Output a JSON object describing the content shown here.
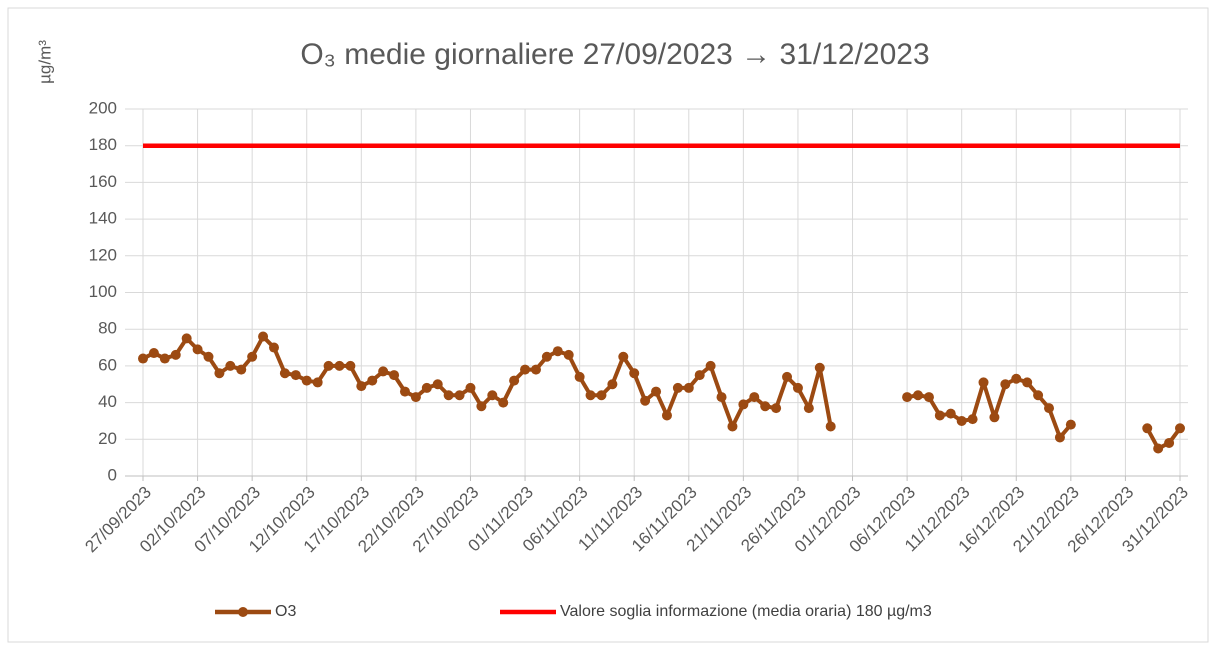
{
  "chart_data": {
    "type": "line",
    "title": "O₃ medie giornaliere 27/09/2023 → 31/12/2023",
    "y_label": "µg/m³",
    "categories": [
      "27/09/2023",
      null,
      null,
      null,
      null,
      "02/10/2023",
      null,
      null,
      null,
      null,
      "07/10/2023",
      null,
      null,
      null,
      null,
      "12/10/2023",
      null,
      null,
      null,
      null,
      "17/10/2023",
      null,
      null,
      null,
      null,
      "22/10/2023",
      null,
      null,
      null,
      null,
      "27/10/2023",
      null,
      null,
      null,
      null,
      "01/11/2023",
      null,
      null,
      null,
      null,
      "06/11/2023",
      null,
      null,
      null,
      null,
      "11/11/2023",
      null,
      null,
      null,
      null,
      "16/11/2023",
      null,
      null,
      null,
      null,
      "21/11/2023",
      null,
      null,
      null,
      null,
      "26/11/2023",
      null,
      null,
      null,
      null,
      "01/12/2023",
      null,
      null,
      null,
      null,
      "06/12/2023",
      null,
      null,
      null,
      null,
      "11/12/2023",
      null,
      null,
      null,
      null,
      "16/12/2023",
      null,
      null,
      null,
      null,
      "21/12/2023",
      null,
      null,
      null,
      null,
      "26/12/2023",
      null,
      null,
      null,
      null,
      "31/12/2023"
    ],
    "series": [
      {
        "name": "O3",
        "color": "#9c4a12",
        "marker": true,
        "values": [
          64,
          67,
          64,
          66,
          75,
          69,
          65,
          56,
          60,
          58,
          65,
          76,
          70,
          56,
          55,
          52,
          51,
          60,
          60,
          60,
          49,
          52,
          57,
          55,
          46,
          43,
          48,
          50,
          44,
          44,
          48,
          38,
          44,
          40,
          52,
          58,
          58,
          65,
          68,
          66,
          54,
          44,
          44,
          50,
          65,
          56,
          41,
          46,
          33,
          48,
          48,
          55,
          60,
          43,
          27,
          39,
          43,
          38,
          37,
          54,
          48,
          37,
          59,
          27,
          null,
          null,
          null,
          null,
          null,
          null,
          43,
          44,
          43,
          33,
          34,
          30,
          31,
          51,
          32,
          50,
          53,
          51,
          44,
          37,
          21,
          28,
          null,
          null,
          null,
          null,
          null,
          null,
          26,
          15,
          18,
          26
        ]
      },
      {
        "name": "Valore soglia informazione (media oraria)  180 µg/m3",
        "color": "#ff0000",
        "marker": false,
        "values": [
          180,
          180,
          180,
          180,
          180,
          180,
          180,
          180,
          180,
          180,
          180,
          180,
          180,
          180,
          180,
          180,
          180,
          180,
          180,
          180,
          180,
          180,
          180,
          180,
          180,
          180,
          180,
          180,
          180,
          180,
          180,
          180,
          180,
          180,
          180,
          180,
          180,
          180,
          180,
          180,
          180,
          180,
          180,
          180,
          180,
          180,
          180,
          180,
          180,
          180,
          180,
          180,
          180,
          180,
          180,
          180,
          180,
          180,
          180,
          180,
          180,
          180,
          180,
          180,
          180,
          180,
          180,
          180,
          180,
          180,
          180,
          180,
          180,
          180,
          180,
          180,
          180,
          180,
          180,
          180,
          180,
          180,
          180,
          180,
          180,
          180,
          180,
          180,
          180,
          180,
          180,
          180,
          180,
          180,
          180,
          180
        ]
      }
    ],
    "ylim": [
      0,
      200
    ],
    "yticks": [
      0,
      20,
      40,
      60,
      80,
      100,
      120,
      140,
      160,
      180,
      200
    ],
    "grid": true,
    "legend": "bottom"
  }
}
